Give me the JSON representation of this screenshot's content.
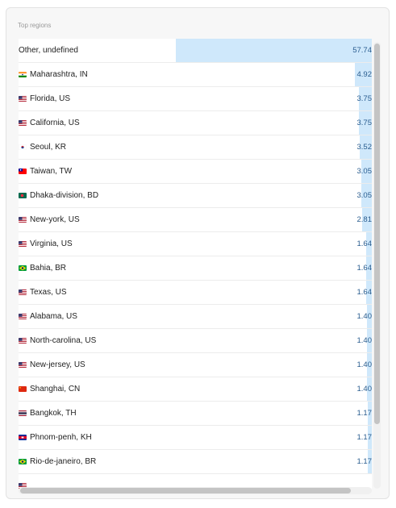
{
  "panel": {
    "title": "Top regions"
  },
  "colors": {
    "bar": "#cfe8fb",
    "value_text": "#2a5d8f"
  },
  "regions": [
    {
      "label": "Other, undefined",
      "value": "57.74",
      "flag": null
    },
    {
      "label": "Maharashtra, IN",
      "value": "4.92",
      "flag": "in"
    },
    {
      "label": "Florida, US",
      "value": "3.75",
      "flag": "us"
    },
    {
      "label": "California, US",
      "value": "3.75",
      "flag": "us"
    },
    {
      "label": "Seoul, KR",
      "value": "3.52",
      "flag": "kr"
    },
    {
      "label": "Taiwan, TW",
      "value": "3.05",
      "flag": "tw"
    },
    {
      "label": "Dhaka-division, BD",
      "value": "3.05",
      "flag": "bd"
    },
    {
      "label": "New-york, US",
      "value": "2.81",
      "flag": "us"
    },
    {
      "label": "Virginia, US",
      "value": "1.64",
      "flag": "us"
    },
    {
      "label": "Bahia, BR",
      "value": "1.64",
      "flag": "br"
    },
    {
      "label": "Texas, US",
      "value": "1.64",
      "flag": "us"
    },
    {
      "label": "Alabama, US",
      "value": "1.40",
      "flag": "us"
    },
    {
      "label": "North-carolina, US",
      "value": "1.40",
      "flag": "us"
    },
    {
      "label": "New-jersey, US",
      "value": "1.40",
      "flag": "us"
    },
    {
      "label": "Shanghai, CN",
      "value": "1.40",
      "flag": "cn"
    },
    {
      "label": "Bangkok, TH",
      "value": "1.17",
      "flag": "th"
    },
    {
      "label": "Phnom-penh, KH",
      "value": "1.17",
      "flag": "kh"
    },
    {
      "label": "Rio-de-janeiro, BR",
      "value": "1.17",
      "flag": "br"
    },
    {
      "label": "",
      "value": "",
      "flag": "us"
    }
  ],
  "scrollbars": {
    "vertical_position": 0.0,
    "horizontal_position": 0.0
  }
}
